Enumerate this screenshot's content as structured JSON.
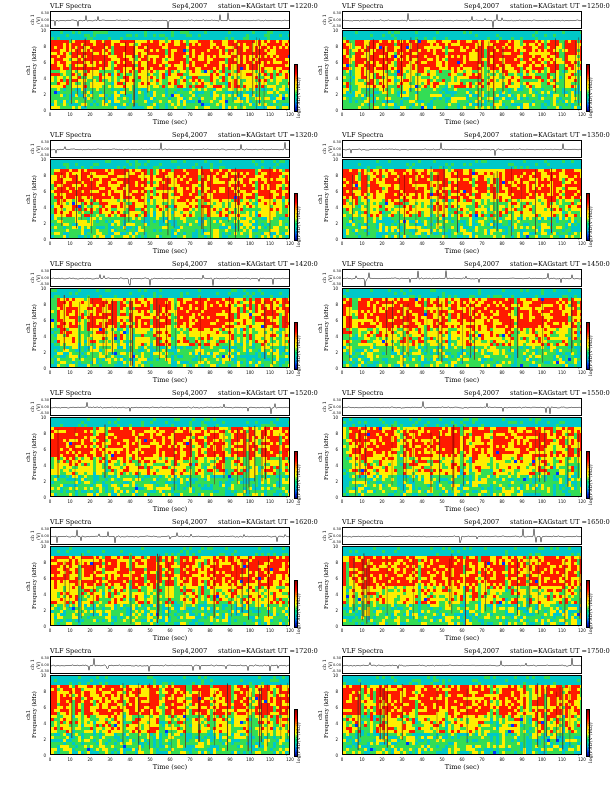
{
  "title_word": "VLF Spectra",
  "date": "Sep4,2007",
  "station": "station=KAG",
  "start_prefix": "start  UT  =",
  "ch1_label": "ch 1 (V)",
  "ylabel_top": "ch1",
  "ylabel": "Frequency  (kHz)",
  "xlabel": "Time  (sec)",
  "cbar_label": "log(PSD(V²/Hz))",
  "ts_ticks": [
    "0.30",
    "0.00",
    "-0.30"
  ],
  "y_ticks": [
    "0",
    "2",
    "4",
    "6",
    "8",
    "10"
  ],
  "x_ticks": [
    "0",
    "10",
    "20",
    "30",
    "40",
    "50",
    "60",
    "70",
    "80",
    "90",
    "100",
    "110",
    "120"
  ],
  "cbar_ticks": [
    "-",
    "-"
  ],
  "colors": {
    "dark_red": "#8b0000",
    "red": "#ff1a00",
    "yellow": "#ffee00",
    "green": "#33dd55",
    "cyan": "#00c8c8",
    "blue": "#0033ff",
    "navy": "#000080"
  },
  "chart_data": [
    {
      "type": "heatmap",
      "panel": 1,
      "start_ut": "1220:0",
      "xlim": [
        0,
        120
      ],
      "ylim": [
        0,
        10
      ],
      "xlabel": "Time  (sec)",
      "ylabel": "Frequency  (kHz)",
      "colorbar": "log(PSD(V²/Hz))"
    },
    {
      "type": "heatmap",
      "panel": 2,
      "start_ut": "1250:0",
      "xlim": [
        0,
        120
      ],
      "ylim": [
        0,
        10
      ],
      "xlabel": "Time  (sec)",
      "ylabel": "Frequency  (kHz)",
      "colorbar": "log(PSD(V²/Hz))"
    },
    {
      "type": "heatmap",
      "panel": 3,
      "start_ut": "1320:0",
      "xlim": [
        0,
        120
      ],
      "ylim": [
        0,
        10
      ],
      "xlabel": "Time  (sec)",
      "ylabel": "Frequency  (kHz)",
      "colorbar": "log(PSD(V²/Hz))"
    },
    {
      "type": "heatmap",
      "panel": 4,
      "start_ut": "1350:0",
      "xlim": [
        0,
        120
      ],
      "ylim": [
        0,
        10
      ],
      "xlabel": "Time  (sec)",
      "ylabel": "Frequency  (kHz)",
      "colorbar": "log(PSD(V²/Hz))"
    },
    {
      "type": "heatmap",
      "panel": 5,
      "start_ut": "1420:0",
      "xlim": [
        0,
        120
      ],
      "ylim": [
        0,
        10
      ],
      "xlabel": "Time  (sec)",
      "ylabel": "Frequency  (kHz)",
      "colorbar": "log(PSD(V²/Hz))"
    },
    {
      "type": "heatmap",
      "panel": 6,
      "start_ut": "1450:0",
      "xlim": [
        0,
        120
      ],
      "ylim": [
        0,
        10
      ],
      "xlabel": "Time  (sec)",
      "ylabel": "Frequency  (kHz)",
      "colorbar": "log(PSD(V²/Hz))"
    },
    {
      "type": "heatmap",
      "panel": 7,
      "start_ut": "1520:0",
      "xlim": [
        0,
        120
      ],
      "ylim": [
        0,
        10
      ],
      "xlabel": "Time  (sec)",
      "ylabel": "Frequency  (kHz)",
      "colorbar": "log(PSD(V²/Hz))"
    },
    {
      "type": "heatmap",
      "panel": 8,
      "start_ut": "1550:0",
      "xlim": [
        0,
        120
      ],
      "ylim": [
        0,
        10
      ],
      "xlabel": "Time  (sec)",
      "ylabel": "Frequency  (kHz)",
      "colorbar": "log(PSD(V²/Hz))"
    },
    {
      "type": "heatmap",
      "panel": 9,
      "start_ut": "1620:0",
      "xlim": [
        0,
        120
      ],
      "ylim": [
        0,
        10
      ],
      "xlabel": "Time  (sec)",
      "ylabel": "Frequency  (kHz)",
      "colorbar": "log(PSD(V²/Hz))"
    },
    {
      "type": "heatmap",
      "panel": 10,
      "start_ut": "1650:0",
      "xlim": [
        0,
        120
      ],
      "ylim": [
        0,
        10
      ],
      "xlabel": "Time  (sec)",
      "ylabel": "Frequency  (kHz)",
      "colorbar": "log(PSD(V²/Hz))"
    },
    {
      "type": "heatmap",
      "panel": 11,
      "start_ut": "1720:0",
      "xlim": [
        0,
        120
      ],
      "ylim": [
        0,
        10
      ],
      "xlabel": "Time  (sec)",
      "ylabel": "Frequency  (kHz)",
      "colorbar": "log(PSD(V²/Hz))"
    },
    {
      "type": "heatmap",
      "panel": 12,
      "start_ut": "1750:0",
      "xlim": [
        0,
        120
      ],
      "ylim": [
        0,
        10
      ],
      "xlabel": "Time  (sec)",
      "ylabel": "Frequency  (kHz)",
      "colorbar": "log(PSD(V²/Hz))"
    }
  ]
}
